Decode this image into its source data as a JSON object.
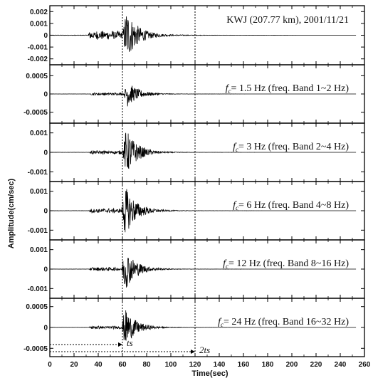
{
  "figure": {
    "ylabel": "Amplitude(cm/sec)",
    "xlabel": "Time(sec)",
    "x_ticks": [
      "0",
      "20",
      "40",
      "60",
      "80",
      "100",
      "120",
      "140",
      "160",
      "180",
      "200",
      "220",
      "240",
      "260"
    ],
    "xlim": [
      0,
      260
    ],
    "markers": {
      "ts_time": 60,
      "two_ts_time": 120,
      "ts_label": "ts",
      "two_ts_label": "2ts"
    }
  },
  "chart_data": [
    {
      "type": "line",
      "panel": 1,
      "title": "KWJ (207.77 km),  2001/11/21",
      "ylim": [
        -0.0025,
        0.0025
      ],
      "y_ticks": [
        "0.002",
        "0.001",
        "0",
        "-0.001",
        "-0.002"
      ],
      "signal": {
        "onset": 32,
        "peak_time": 62,
        "peak_amp": 0.0022,
        "end": 120,
        "precursor_amp": 0.0004
      }
    },
    {
      "type": "line",
      "panel": 2,
      "title_prefix": "f",
      "title_sub": "c",
      "title": "= 1.5 Hz (freq. Band 1~2 Hz)",
      "ylim": [
        -0.0008,
        0.0008
      ],
      "y_ticks": [
        "0.0005",
        "0",
        "-0.0005"
      ],
      "signal": {
        "onset": 34,
        "peak_time": 63,
        "peak_amp": 0.00035,
        "end": 120,
        "precursor_amp": 4e-05
      }
    },
    {
      "type": "line",
      "panel": 3,
      "title_prefix": "f",
      "title_sub": "c",
      "title": "= 3 Hz (freq. Band 2~4 Hz)",
      "ylim": [
        -0.0015,
        0.0015
      ],
      "y_ticks": [
        "0.001",
        "0",
        "-0.001"
      ],
      "signal": {
        "onset": 33,
        "peak_time": 62,
        "peak_amp": 0.0012,
        "end": 120,
        "precursor_amp": 0.0001
      }
    },
    {
      "type": "line",
      "panel": 4,
      "title_prefix": "f",
      "title_sub": "c",
      "title": "= 6 Hz (freq. Band 4~8 Hz)",
      "ylim": [
        -0.0015,
        0.0015
      ],
      "y_ticks": [
        "0.001",
        "0",
        "-0.001"
      ],
      "signal": {
        "onset": 33,
        "peak_time": 61,
        "peak_amp": 0.0013,
        "end": 120,
        "precursor_amp": 0.00012
      }
    },
    {
      "type": "line",
      "panel": 5,
      "title_prefix": "f",
      "title_sub": "c",
      "title": "= 12 Hz (freq. Band 8~16 Hz)",
      "ylim": [
        -0.0015,
        0.0015
      ],
      "y_ticks": [
        "0.001",
        "0",
        "-0.001"
      ],
      "signal": {
        "onset": 33,
        "peak_time": 61,
        "peak_amp": 0.0011,
        "end": 120,
        "precursor_amp": 0.0001
      }
    },
    {
      "type": "line",
      "panel": 6,
      "title_prefix": "f",
      "title_sub": "c",
      "title": "= 24 Hz (freq. Band 16~32 Hz)",
      "ylim": [
        -0.0007,
        0.0007
      ],
      "y_ticks": [
        "0.0005",
        "0",
        "-0.0005"
      ],
      "signal": {
        "onset": 33,
        "peak_time": 61,
        "peak_amp": 0.00045,
        "end": 120,
        "precursor_amp": 4e-05
      }
    }
  ]
}
